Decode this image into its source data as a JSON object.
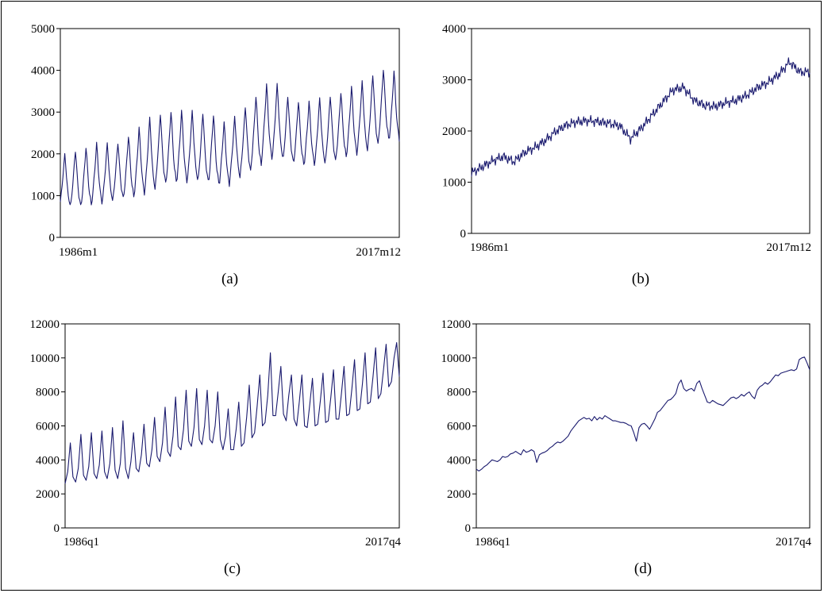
{
  "figure": {
    "panels": [
      "(a)",
      "(b)",
      "(c)",
      "(d)"
    ]
  },
  "chart_data": [
    {
      "id": "a",
      "type": "line",
      "label": "(a)",
      "frequency": "monthly",
      "x_start_label": "1986m1",
      "x_end_label": "2017m12",
      "ylim": [
        0,
        5000
      ],
      "yticks": [
        0,
        1000,
        2000,
        3000,
        4000,
        5000
      ],
      "series": [
        {
          "color": "#1a1a6e",
          "values": [
            {
              "year": 1986,
              "trend": 1380,
              "amp": 640
            },
            {
              "year": 1987,
              "trend": 1410,
              "amp": 700
            },
            {
              "year": 1988,
              "trend": 1470,
              "amp": 720
            },
            {
              "year": 1989,
              "trend": 1540,
              "amp": 740
            },
            {
              "year": 1990,
              "trend": 1560,
              "amp": 720
            },
            {
              "year": 1991,
              "trend": 1600,
              "amp": 700
            },
            {
              "year": 1992,
              "trend": 1700,
              "amp": 760
            },
            {
              "year": 1993,
              "trend": 1830,
              "amp": 820
            },
            {
              "year": 1994,
              "trend": 2000,
              "amp": 900
            },
            {
              "year": 1995,
              "trend": 2120,
              "amp": 880
            },
            {
              "year": 1996,
              "trend": 2180,
              "amp": 880
            },
            {
              "year": 1997,
              "trend": 2180,
              "amp": 880
            },
            {
              "year": 1998,
              "trend": 2200,
              "amp": 860
            },
            {
              "year": 1999,
              "trend": 2160,
              "amp": 860
            },
            {
              "year": 2000,
              "trend": 2120,
              "amp": 860
            },
            {
              "year": 2001,
              "trend": 2000,
              "amp": 780
            },
            {
              "year": 2002,
              "trend": 2150,
              "amp": 760
            },
            {
              "year": 2003,
              "trend": 2350,
              "amp": 820
            },
            {
              "year": 2004,
              "trend": 2550,
              "amp": 880
            },
            {
              "year": 2005,
              "trend": 2780,
              "amp": 920
            },
            {
              "year": 2006,
              "trend": 2800,
              "amp": 900
            },
            {
              "year": 2007,
              "trend": 2600,
              "amp": 820
            },
            {
              "year": 2008,
              "trend": 2500,
              "amp": 800
            },
            {
              "year": 2009,
              "trend": 2500,
              "amp": 780
            },
            {
              "year": 2010,
              "trend": 2550,
              "amp": 800
            },
            {
              "year": 2011,
              "trend": 2600,
              "amp": 820
            },
            {
              "year": 2012,
              "trend": 2700,
              "amp": 820
            },
            {
              "year": 2013,
              "trend": 2800,
              "amp": 840
            },
            {
              "year": 2014,
              "trend": 2900,
              "amp": 860
            },
            {
              "year": 2015,
              "trend": 3050,
              "amp": 880
            },
            {
              "year": 2016,
              "trend": 3200,
              "amp": 880
            },
            {
              "year": 2017,
              "trend": 3150,
              "amp": 860
            }
          ]
        }
      ]
    },
    {
      "id": "b",
      "type": "line",
      "label": "(b)",
      "frequency": "monthly",
      "x_start_label": "1986m1",
      "x_end_label": "2017m12",
      "ylim": [
        0,
        4000
      ],
      "yticks": [
        0,
        1000,
        2000,
        3000,
        4000
      ],
      "series": [
        {
          "color": "#1a1a6e",
          "values": [
            {
              "year": 1986,
              "value": 1180
            },
            {
              "year": 1987,
              "value": 1300
            },
            {
              "year": 1988,
              "value": 1420
            },
            {
              "year": 1989,
              "value": 1500
            },
            {
              "year": 1990,
              "value": 1400
            },
            {
              "year": 1991,
              "value": 1580
            },
            {
              "year": 1992,
              "value": 1680
            },
            {
              "year": 1993,
              "value": 1820
            },
            {
              "year": 1994,
              "value": 2000
            },
            {
              "year": 1995,
              "value": 2120
            },
            {
              "year": 1996,
              "value": 2180
            },
            {
              "year": 1997,
              "value": 2200
            },
            {
              "year": 1998,
              "value": 2180
            },
            {
              "year": 1999,
              "value": 2150
            },
            {
              "year": 2000,
              "value": 2100
            },
            {
              "year": 2001,
              "value": 1850
            },
            {
              "year": 2002,
              "value": 2050
            },
            {
              "year": 2003,
              "value": 2300
            },
            {
              "year": 2004,
              "value": 2550
            },
            {
              "year": 2005,
              "value": 2800
            },
            {
              "year": 2006,
              "value": 2850
            },
            {
              "year": 2007,
              "value": 2600
            },
            {
              "year": 2008,
              "value": 2500
            },
            {
              "year": 2009,
              "value": 2480
            },
            {
              "year": 2010,
              "value": 2550
            },
            {
              "year": 2011,
              "value": 2600
            },
            {
              "year": 2012,
              "value": 2700
            },
            {
              "year": 2013,
              "value": 2850
            },
            {
              "year": 2014,
              "value": 2950
            },
            {
              "year": 2015,
              "value": 3100
            },
            {
              "year": 2016,
              "value": 3350
            },
            {
              "year": 2017,
              "value": 3150
            }
          ]
        }
      ]
    },
    {
      "id": "c",
      "type": "line",
      "label": "(c)",
      "frequency": "quarterly",
      "x_start_label": "1986q1",
      "x_end_label": "2017q4",
      "ylim": [
        0,
        12000
      ],
      "yticks": [
        0,
        2000,
        4000,
        6000,
        8000,
        10000,
        12000
      ],
      "series": [
        {
          "color": "#1a1a6e",
          "values": [
            {
              "year": 1986,
              "q": [
                2600,
                3300,
                5000,
                3000
              ]
            },
            {
              "year": 1987,
              "q": [
                2700,
                3500,
                5500,
                3100
              ]
            },
            {
              "year": 1988,
              "q": [
                2800,
                3600,
                5600,
                3200
              ]
            },
            {
              "year": 1989,
              "q": [
                2900,
                3700,
                5700,
                3300
              ]
            },
            {
              "year": 1990,
              "q": [
                2900,
                3800,
                5900,
                3400
              ]
            },
            {
              "year": 1991,
              "q": [
                2900,
                3800,
                6300,
                3500
              ]
            },
            {
              "year": 1992,
              "q": [
                2900,
                3900,
                5600,
                3500
              ]
            },
            {
              "year": 1993,
              "q": [
                3300,
                4300,
                6100,
                3800
              ]
            },
            {
              "year": 1994,
              "q": [
                3600,
                4600,
                6500,
                4200
              ]
            },
            {
              "year": 1995,
              "q": [
                3900,
                5000,
                7100,
                4500
              ]
            },
            {
              "year": 1996,
              "q": [
                4200,
                5400,
                7700,
                4800
              ]
            },
            {
              "year": 1997,
              "q": [
                4600,
                5800,
                8100,
                5100
              ]
            },
            {
              "year": 1998,
              "q": [
                4800,
                5900,
                8200,
                5200
              ]
            },
            {
              "year": 1999,
              "q": [
                4900,
                6000,
                8100,
                5200
              ]
            },
            {
              "year": 2000,
              "q": [
                5000,
                6000,
                8000,
                5200
              ]
            },
            {
              "year": 2001,
              "q": [
                4600,
                5400,
                7000,
                4600
              ]
            },
            {
              "year": 2002,
              "q": [
                4600,
                5800,
                7400,
                4800
              ]
            },
            {
              "year": 2003,
              "q": [
                5000,
                6500,
                8400,
                5300
              ]
            },
            {
              "year": 2004,
              "q": [
                5600,
                7200,
                9000,
                6000
              ]
            },
            {
              "year": 2005,
              "q": [
                6200,
                7800,
                10300,
                6600
              ]
            },
            {
              "year": 2006,
              "q": [
                6600,
                8000,
                9500,
                6700
              ]
            },
            {
              "year": 2007,
              "q": [
                6300,
                7800,
                9000,
                6400
              ]
            },
            {
              "year": 2008,
              "q": [
                6000,
                7400,
                9000,
                6000
              ]
            },
            {
              "year": 2009,
              "q": [
                5900,
                7300,
                8800,
                6000
              ]
            },
            {
              "year": 2010,
              "q": [
                6100,
                7500,
                9100,
                6200
              ]
            },
            {
              "year": 2011,
              "q": [
                6300,
                7700,
                9300,
                6400
              ]
            },
            {
              "year": 2012,
              "q": [
                6400,
                7900,
                9500,
                6600
              ]
            },
            {
              "year": 2013,
              "q": [
                6700,
                8200,
                9900,
                6900
              ]
            },
            {
              "year": 2014,
              "q": [
                7000,
                8500,
                10300,
                7300
              ]
            },
            {
              "year": 2015,
              "q": [
                7400,
                8900,
                10600,
                7600
              ]
            },
            {
              "year": 2016,
              "q": [
                7900,
                9300,
                10800,
                8300
              ]
            },
            {
              "year": 2017,
              "q": [
                8600,
                10000,
                10900,
                8900
              ]
            }
          ]
        }
      ]
    },
    {
      "id": "d",
      "type": "line",
      "label": "(d)",
      "frequency": "quarterly",
      "x_start_label": "1986q1",
      "x_end_label": "2017q4",
      "ylim": [
        0,
        12000
      ],
      "yticks": [
        0,
        2000,
        4000,
        6000,
        8000,
        10000,
        12000
      ],
      "series": [
        {
          "color": "#1a1a6e",
          "values": [
            {
              "year": 1986,
              "q": [
                3450,
                3350,
                3450,
                3600
              ]
            },
            {
              "year": 1987,
              "q": [
                3700,
                3850,
                4000,
                3950
              ]
            },
            {
              "year": 1988,
              "q": [
                3900,
                4000,
                4200,
                4150
              ]
            },
            {
              "year": 1989,
              "q": [
                4200,
                4350,
                4400,
                4500
              ]
            },
            {
              "year": 1990,
              "q": [
                4400,
                4300,
                4600,
                4450
              ]
            },
            {
              "year": 1991,
              "q": [
                4500,
                4600,
                4500,
                3850
              ]
            },
            {
              "year": 1992,
              "q": [
                4300,
                4400,
                4450,
                4550
              ]
            },
            {
              "year": 1993,
              "q": [
                4700,
                4800,
                4950,
                5050
              ]
            },
            {
              "year": 1994,
              "q": [
                5000,
                5100,
                5250,
                5400
              ]
            },
            {
              "year": 1995,
              "q": [
                5700,
                5900,
                6100,
                6300
              ]
            },
            {
              "year": 1996,
              "q": [
                6400,
                6500,
                6400,
                6450
              ]
            },
            {
              "year": 1997,
              "q": [
                6300,
                6550,
                6350,
                6500
              ]
            },
            {
              "year": 1998,
              "q": [
                6400,
                6600,
                6500,
                6400
              ]
            },
            {
              "year": 1999,
              "q": [
                6300,
                6300,
                6250,
                6200
              ]
            },
            {
              "year": 2000,
              "q": [
                6200,
                6150,
                6050,
                6000
              ]
            },
            {
              "year": 2001,
              "q": [
                5600,
                5100,
                5900,
                6100
              ]
            },
            {
              "year": 2002,
              "q": [
                6150,
                6000,
                5800,
                6100
              ]
            },
            {
              "year": 2003,
              "q": [
                6400,
                6800,
                6900,
                7100
              ]
            },
            {
              "year": 2004,
              "q": [
                7300,
                7500,
                7550,
                7700
              ]
            },
            {
              "year": 2005,
              "q": [
                7900,
                8450,
                8700,
                8200
              ]
            },
            {
              "year": 2006,
              "q": [
                8050,
                8150,
                8200,
                8050
              ]
            },
            {
              "year": 2007,
              "q": [
                8500,
                8650,
                8200,
                7800
              ]
            },
            {
              "year": 2008,
              "q": [
                7400,
                7350,
                7500,
                7400
              ]
            },
            {
              "year": 2009,
              "q": [
                7300,
                7250,
                7200,
                7350
              ]
            },
            {
              "year": 2010,
              "q": [
                7500,
                7650,
                7700,
                7600
              ]
            },
            {
              "year": 2011,
              "q": [
                7700,
                7850,
                7750,
                7900
              ]
            },
            {
              "year": 2012,
              "q": [
                8000,
                7750,
                7600,
                8100
              ]
            },
            {
              "year": 2013,
              "q": [
                8300,
                8400,
                8550,
                8450
              ]
            },
            {
              "year": 2014,
              "q": [
                8600,
                8800,
                9000,
                8950
              ]
            },
            {
              "year": 2015,
              "q": [
                9100,
                9150,
                9200,
                9250
              ]
            },
            {
              "year": 2016,
              "q": [
                9300,
                9250,
                9350,
                9900
              ]
            },
            {
              "year": 2017,
              "q": [
                10000,
                10050,
                9700,
                9300
              ]
            }
          ]
        }
      ]
    }
  ]
}
